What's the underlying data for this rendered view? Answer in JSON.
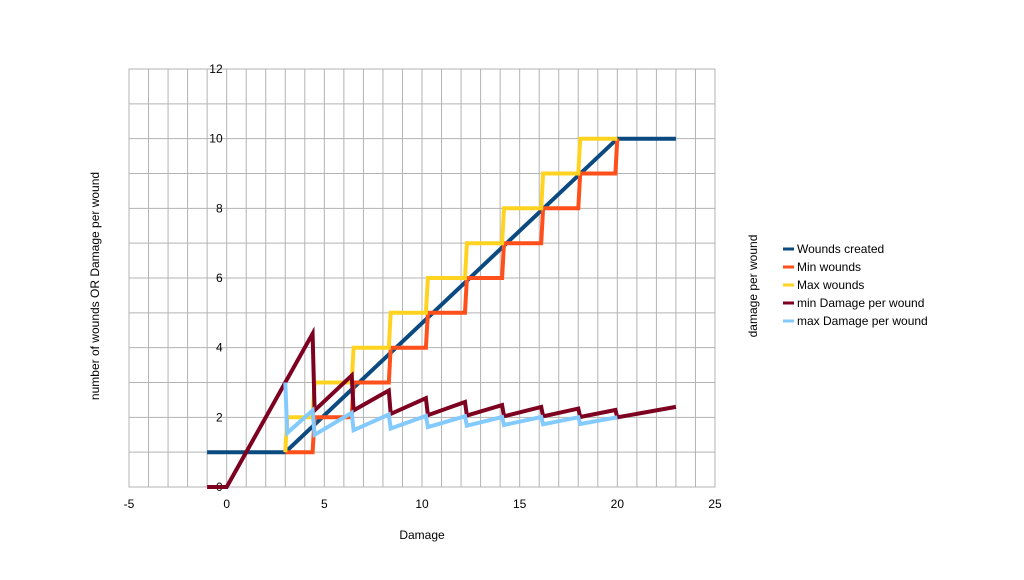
{
  "chart_data": {
    "type": "line",
    "xlabel": "Damage",
    "ylabel": "number of wounds OR Damage per wound",
    "y2label": "damage per wound",
    "xlim": [
      -5,
      25
    ],
    "ylim": [
      0,
      12
    ],
    "x_ticks": [
      "-5",
      "0",
      "5",
      "10",
      "15",
      "20",
      "25"
    ],
    "y_ticks": [
      "0",
      "2",
      "4",
      "6",
      "8",
      "10",
      "12"
    ],
    "grid": true,
    "legend_position": "right",
    "series": [
      {
        "name": "Wounds created",
        "color": "#0b4a80",
        "x": [
          -1,
          3,
          20,
          23
        ],
        "y": [
          1,
          1,
          10,
          10
        ]
      },
      {
        "name": "Min wounds",
        "color": "#ff4f1a",
        "x": [
          3,
          4.4,
          4.5,
          6.4,
          6.5,
          8.3,
          8.4,
          10.2,
          10.3,
          12.2,
          12.3,
          14.1,
          14.2,
          16.1,
          16.2,
          18,
          18.1,
          19.9,
          20
        ],
        "y": [
          1,
          1,
          2,
          2,
          3,
          3,
          4,
          4,
          5,
          5,
          6,
          6,
          7,
          7,
          8,
          8,
          9,
          9,
          10
        ]
      },
      {
        "name": "Max wounds",
        "color": "#ffd320",
        "x": [
          3,
          3.1,
          4.4,
          4.5,
          6.4,
          6.5,
          8.3,
          8.4,
          10.2,
          10.3,
          12.2,
          12.3,
          14.1,
          14.2,
          16.1,
          16.2,
          18,
          18.1,
          20
        ],
        "y": [
          1,
          2,
          2,
          3,
          3,
          4,
          4,
          5,
          5,
          6,
          6,
          7,
          7,
          8,
          8,
          9,
          9,
          10,
          10
        ]
      },
      {
        "name": "min Damage per wound",
        "color": "#7e0021",
        "x": [
          -1,
          0,
          4.4,
          4.5,
          6.4,
          6.5,
          8.3,
          8.4,
          10.2,
          10.3,
          12.2,
          12.3,
          14.1,
          14.2,
          16.1,
          16.2,
          18,
          18.1,
          19.9,
          20,
          23
        ],
        "y": [
          0,
          0,
          4.4,
          2.2,
          3.2,
          2.2,
          2.77,
          2.1,
          2.55,
          2.06,
          2.44,
          2.05,
          2.35,
          2.03,
          2.3,
          2.03,
          2.25,
          2.01,
          2.21,
          2.0,
          2.3
        ]
      },
      {
        "name": "max Damage per wound",
        "color": "#83caff",
        "x": [
          3,
          3.1,
          4.4,
          4.5,
          6.4,
          6.5,
          8.3,
          8.4,
          10.2,
          10.3,
          12.2,
          12.3,
          14.1,
          14.2,
          16.1,
          16.2,
          18,
          18.1,
          20
        ],
        "y": [
          3,
          1.55,
          2.2,
          1.5,
          2.13,
          1.63,
          2.08,
          1.68,
          2.04,
          1.72,
          2.03,
          1.76,
          2.01,
          1.78,
          2.01,
          1.8,
          2.0,
          1.81,
          2.0
        ]
      }
    ]
  }
}
